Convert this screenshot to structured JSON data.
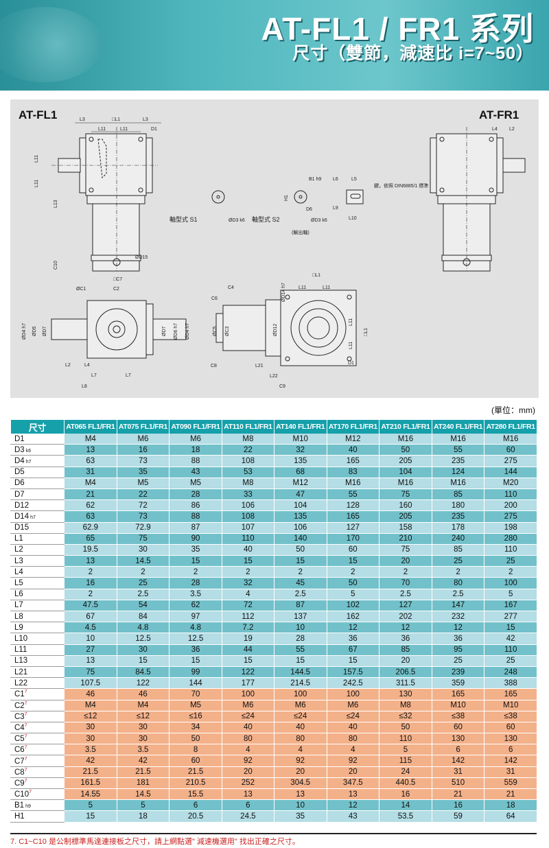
{
  "header": {
    "title": "AT-FL1 / FR1 系列",
    "subtitle": "尺寸（雙節，減速比 i=7~50）"
  },
  "drawing": {
    "left_model": "AT-FL1",
    "right_model": "AT-FR1",
    "labels": {
      "L3": "L3",
      "L1": "□L1",
      "L11": "L11",
      "D1": "D1",
      "L13": "L13",
      "D15": "ØD15",
      "C10": "C10",
      "C7": "□C7",
      "C1": "ØC1",
      "C2": "C2",
      "C3": "ØC3",
      "C4": "C4",
      "C5": "ØC5",
      "C6": "C6",
      "C8": "C8",
      "C9": "C9",
      "D4": "ØD4 h7",
      "D5": "ØD5",
      "D7": "ØD7",
      "D6": "ØD6 h7",
      "D12": "ØD12",
      "D14": "ØD14 h7",
      "L2": "L2",
      "L4": "L4",
      "L7": "L7",
      "L8": "L8",
      "L21": "L21",
      "L22": "L22",
      "B1": "B1 h9",
      "H1": "H1",
      "D6s": "D6",
      "D3": "ØD3 k6",
      "L5": "L5",
      "L6": "L6",
      "L9": "L9",
      "L10": "L10"
    },
    "shaft_s1": "軸型式  S1",
    "shaft_s2": "軸型式  S2",
    "output_shaft": "(輸出軸)",
    "key_note": "鍵，依照 DIN6885/1 標準"
  },
  "unit": "(單位：mm)",
  "table": {
    "header_label": "尺寸",
    "columns": [
      "AT065 FL1/FR1",
      "AT075 FL1/FR1",
      "AT090 FL1/FR1",
      "AT110 FL1/FR1",
      "AT140 FL1/FR1",
      "AT170 FL1/FR1",
      "AT210 FL1/FR1",
      "AT240 FL1/FR1",
      "AT280 FL1/FR1"
    ],
    "rows": [
      {
        "name": "D1",
        "values": [
          "M4",
          "M6",
          "M6",
          "M8",
          "M10",
          "M12",
          "M16",
          "M16",
          "M16"
        ]
      },
      {
        "name": "D3",
        "tol": "k6",
        "values": [
          "13",
          "16",
          "18",
          "22",
          "32",
          "40",
          "50",
          "55",
          "60"
        ]
      },
      {
        "name": "D4",
        "tol": "h7",
        "values": [
          "63",
          "73",
          "88",
          "108",
          "135",
          "165",
          "205",
          "235",
          "275"
        ]
      },
      {
        "name": "D5",
        "values": [
          "31",
          "35",
          "43",
          "53",
          "68",
          "83",
          "104",
          "124",
          "144"
        ]
      },
      {
        "name": "D6",
        "values": [
          "M4",
          "M5",
          "M5",
          "M8",
          "M12",
          "M16",
          "M16",
          "M16",
          "M20"
        ]
      },
      {
        "name": "D7",
        "values": [
          "21",
          "22",
          "28",
          "33",
          "47",
          "55",
          "75",
          "85",
          "110"
        ]
      },
      {
        "name": "D12",
        "values": [
          "62",
          "72",
          "86",
          "106",
          "104",
          "128",
          "160",
          "180",
          "200"
        ]
      },
      {
        "name": "D14",
        "tol": "h7",
        "values": [
          "63",
          "73",
          "88",
          "108",
          "135",
          "165",
          "205",
          "235",
          "275"
        ]
      },
      {
        "name": "D15",
        "values": [
          "62.9",
          "72.9",
          "87",
          "107",
          "106",
          "127",
          "158",
          "178",
          "198"
        ]
      },
      {
        "name": "L1",
        "values": [
          "65",
          "75",
          "90",
          "110",
          "140",
          "170",
          "210",
          "240",
          "280"
        ]
      },
      {
        "name": "L2",
        "values": [
          "19.5",
          "30",
          "35",
          "40",
          "50",
          "60",
          "75",
          "85",
          "110"
        ]
      },
      {
        "name": "L3",
        "values": [
          "13",
          "14.5",
          "15",
          "15",
          "15",
          "15",
          "20",
          "25",
          "25"
        ]
      },
      {
        "name": "L4",
        "values": [
          "2",
          "2",
          "2",
          "2",
          "2",
          "2",
          "2",
          "2",
          "2"
        ]
      },
      {
        "name": "L5",
        "values": [
          "16",
          "25",
          "28",
          "32",
          "45",
          "50",
          "70",
          "80",
          "100"
        ]
      },
      {
        "name": "L6",
        "values": [
          "2",
          "2.5",
          "3.5",
          "4",
          "2.5",
          "5",
          "2.5",
          "2.5",
          "5"
        ]
      },
      {
        "name": "L7",
        "values": [
          "47.5",
          "54",
          "62",
          "72",
          "87",
          "102",
          "127",
          "147",
          "167"
        ]
      },
      {
        "name": "L8",
        "values": [
          "67",
          "84",
          "97",
          "112",
          "137",
          "162",
          "202",
          "232",
          "277"
        ]
      },
      {
        "name": "L9",
        "values": [
          "4.5",
          "4.8",
          "4.8",
          "7.2",
          "10",
          "12",
          "12",
          "12",
          "15"
        ]
      },
      {
        "name": "L10",
        "values": [
          "10",
          "12.5",
          "12.5",
          "19",
          "28",
          "36",
          "36",
          "36",
          "42"
        ]
      },
      {
        "name": "L11",
        "values": [
          "27",
          "30",
          "36",
          "44",
          "55",
          "67",
          "85",
          "95",
          "110"
        ]
      },
      {
        "name": "L13",
        "values": [
          "13",
          "15",
          "15",
          "15",
          "15",
          "15",
          "20",
          "25",
          "25"
        ]
      },
      {
        "name": "L21",
        "values": [
          "75",
          "84.5",
          "99",
          "122",
          "144.5",
          "157.5",
          "206.5",
          "239",
          "248"
        ]
      },
      {
        "name": "L22",
        "values": [
          "107.5",
          "122",
          "144",
          "177",
          "214.5",
          "242.5",
          "311.5",
          "359",
          "388"
        ]
      },
      {
        "name": "C1",
        "note": "7",
        "values": [
          "46",
          "46",
          "70",
          "100",
          "100",
          "100",
          "130",
          "165",
          "165"
        ]
      },
      {
        "name": "C2",
        "note": "7",
        "values": [
          "M4",
          "M4",
          "M5",
          "M6",
          "M6",
          "M6",
          "M8",
          "M10",
          "M10"
        ]
      },
      {
        "name": "C3",
        "note": "7",
        "values": [
          "≤12",
          "≤12",
          "≤16",
          "≤24",
          "≤24",
          "≤24",
          "≤32",
          "≤38",
          "≤38"
        ]
      },
      {
        "name": "C4",
        "note": "7",
        "values": [
          "30",
          "30",
          "34",
          "40",
          "40",
          "40",
          "50",
          "60",
          "60"
        ]
      },
      {
        "name": "C5",
        "note": "7",
        "values": [
          "30",
          "30",
          "50",
          "80",
          "80",
          "80",
          "110",
          "130",
          "130"
        ]
      },
      {
        "name": "C6",
        "note": "7",
        "values": [
          "3.5",
          "3.5",
          "8",
          "4",
          "4",
          "4",
          "5",
          "6",
          "6"
        ]
      },
      {
        "name": "C7",
        "note": "7",
        "values": [
          "42",
          "42",
          "60",
          "92",
          "92",
          "92",
          "115",
          "142",
          "142"
        ]
      },
      {
        "name": "C8",
        "note": "7",
        "values": [
          "21.5",
          "21.5",
          "21.5",
          "20",
          "20",
          "20",
          "24",
          "31",
          "31"
        ]
      },
      {
        "name": "C9",
        "note": "7",
        "values": [
          "161.5",
          "181",
          "210.5",
          "252",
          "304.5",
          "347.5",
          "440.5",
          "510",
          "559"
        ]
      },
      {
        "name": "C10",
        "note": "7",
        "values": [
          "14.55",
          "14.5",
          "15.5",
          "13",
          "13",
          "13",
          "16",
          "21",
          "21"
        ]
      },
      {
        "name": "B1",
        "tol": "h9",
        "values": [
          "5",
          "5",
          "6",
          "6",
          "10",
          "12",
          "14",
          "16",
          "18"
        ]
      },
      {
        "name": "H1",
        "values": [
          "15",
          "18",
          "20.5",
          "24.5",
          "35",
          "43",
          "53.5",
          "59",
          "64"
        ]
      }
    ]
  },
  "footnote": "7. C1~C10 是公制標準馬達連接板之尺寸，請上網點選\" 減速機選用\" 找出正確之尺寸。",
  "colors": {
    "header": "#15a0aa",
    "row_light": "#b4dde5",
    "row_dark": "#72c1ca",
    "row_motor": "#f3b18a",
    "footnote": "#c8201e"
  }
}
